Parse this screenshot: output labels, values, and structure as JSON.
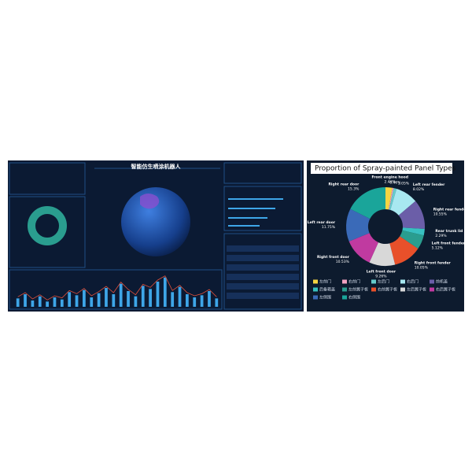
{
  "dashboard": {
    "title": "智能仿生喷涂机器人",
    "bars": {
      "values": [
        8,
        12,
        6,
        10,
        5,
        9,
        7,
        14,
        11,
        16,
        9,
        13,
        18,
        12,
        22,
        15,
        10,
        20,
        17,
        24,
        28,
        14,
        19,
        12,
        9,
        11,
        15,
        8
      ],
      "color": "#3ea6e8",
      "line_color": "#e0503a",
      "ylim": [
        0,
        30
      ]
    }
  },
  "donut_panel": {
    "title": "Proportion of Spray-painted Panel Types",
    "labels": [
      "Front engine hood",
      null,
      null,
      "Left rear fender",
      "Right rear fender",
      "Rear trunk lid",
      "Left front fender",
      "Right front fender",
      "Left front door",
      "Right front door",
      "Left rear door",
      "Right rear door"
    ],
    "values": [
      2.46,
      0.46,
      1.05,
      8.02,
      10.55,
      2.29,
      5.12,
      10.05,
      9.26,
      10.53,
      11.75,
      15.3
    ],
    "value_labels": [
      "2.46%",
      "0.46%",
      "1.05%",
      "8.02%",
      "10.55%",
      "2.29%",
      "5.12%",
      "10.05%",
      "9.26%",
      "10.53%",
      "11.75%",
      "15.3%"
    ],
    "colors": [
      "#f5d442",
      "#f2a2c0",
      "#66cccc",
      "#a8e8f0",
      "#6b5ea8",
      "#38c0c0",
      "#2a9d8f",
      "#e8502a",
      "#d8d8d8",
      "#c03aa0",
      "#3a6ab8",
      "#1aa59a"
    ],
    "legend": [
      "左前门",
      "右前门",
      "左后门",
      "右后门",
      "前机盖",
      "后备箱盖",
      "左前翼子板",
      "右前翼子板",
      "左后翼子板",
      "右后翼子板",
      "左侧围",
      "右侧围"
    ]
  }
}
